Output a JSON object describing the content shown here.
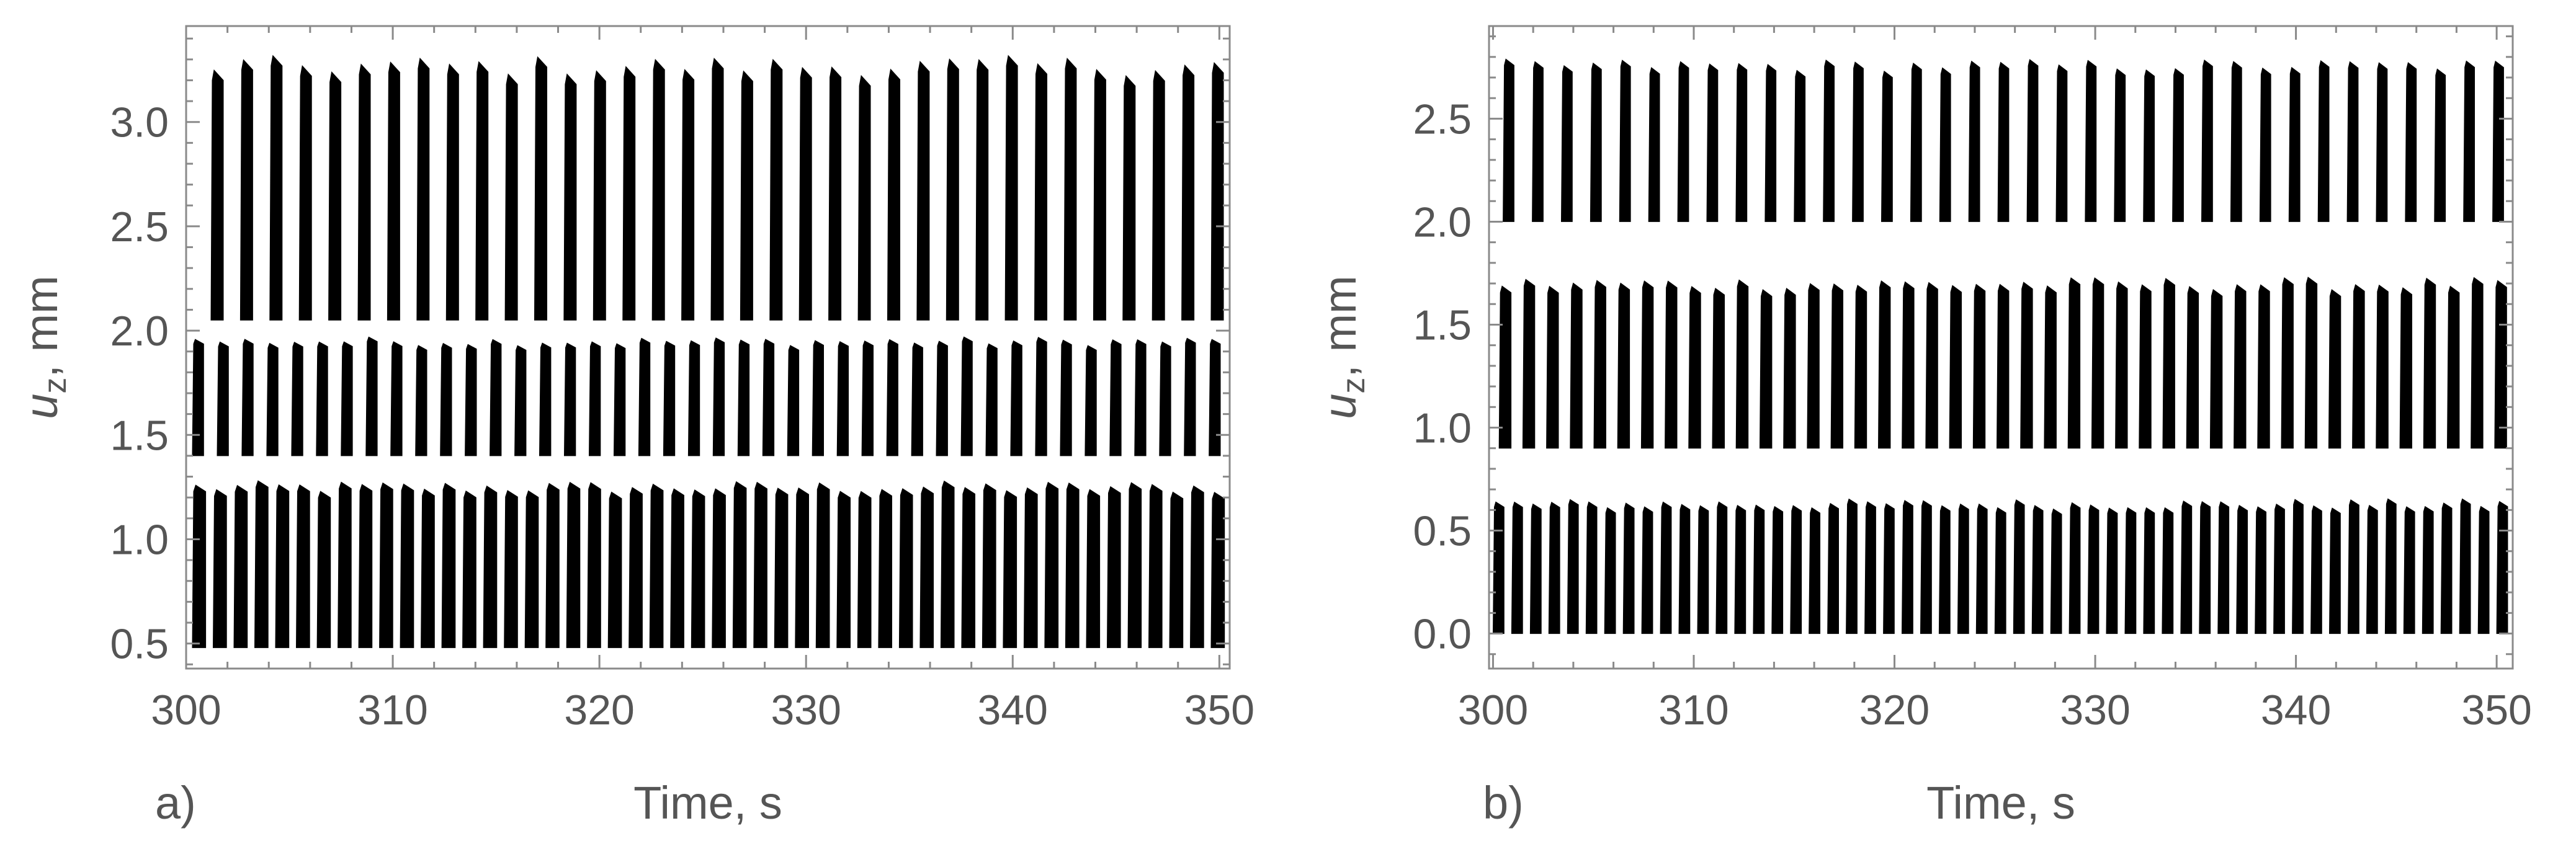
{
  "chart_data": [
    {
      "type": "line",
      "panel_label": "a)",
      "xlabel": "Time, s",
      "ylabel_var": "u",
      "ylabel_sub": "z",
      "ylabel_unit": ", mm",
      "xlim": [
        300,
        350.5
      ],
      "ylim": [
        0.38,
        3.46
      ],
      "xticks": [
        300,
        310,
        320,
        330,
        340,
        350
      ],
      "xtick_labels": [
        "300",
        "310",
        "320",
        "330",
        "340",
        "350"
      ],
      "yticks": [
        0.5,
        1.0,
        1.5,
        2.0,
        2.5,
        3.0
      ],
      "ytick_labels": [
        "0.5",
        "1.0",
        "1.5",
        "2.0",
        "2.5",
        "3.0"
      ],
      "grid": false,
      "series": [
        {
          "start": 300.3,
          "end": 349.6,
          "count": 50,
          "baseline": 0.48,
          "peak": 1.25,
          "width": 0.65
        },
        {
          "start": 300.3,
          "end": 349.5,
          "count": 42,
          "baseline": 1.4,
          "peak": 1.95,
          "width": 0.55
        },
        {
          "start": 301.2,
          "end": 349.6,
          "count": 35,
          "baseline": 2.05,
          "peak": 3.27,
          "width": 0.6
        }
      ]
    },
    {
      "type": "line",
      "panel_label": "b)",
      "xlabel": "Time, s",
      "ylabel_var": "u",
      "ylabel_sub": "z",
      "ylabel_unit": ", mm",
      "xlim": [
        299.8,
        350.8
      ],
      "ylim": [
        -0.17,
        2.95
      ],
      "xticks": [
        300,
        310,
        320,
        330,
        340,
        350
      ],
      "xtick_labels": [
        "300",
        "310",
        "320",
        "330",
        "340",
        "350"
      ],
      "yticks": [
        0.0,
        0.5,
        1.0,
        1.5,
        2.0,
        2.5
      ],
      "ytick_labels": [
        "0.0",
        "0.5",
        "1.0",
        "1.5",
        "2.0",
        "2.5"
      ],
      "grid": false,
      "series": [
        {
          "start": 300.0,
          "end": 350.0,
          "count": 55,
          "baseline": 0.0,
          "peak": 0.63,
          "width": 0.55
        },
        {
          "start": 300.3,
          "end": 349.9,
          "count": 43,
          "baseline": 0.9,
          "peak": 1.7,
          "width": 0.6
        },
        {
          "start": 300.5,
          "end": 349.8,
          "count": 35,
          "baseline": 2.0,
          "peak": 2.76,
          "width": 0.55
        }
      ]
    }
  ]
}
